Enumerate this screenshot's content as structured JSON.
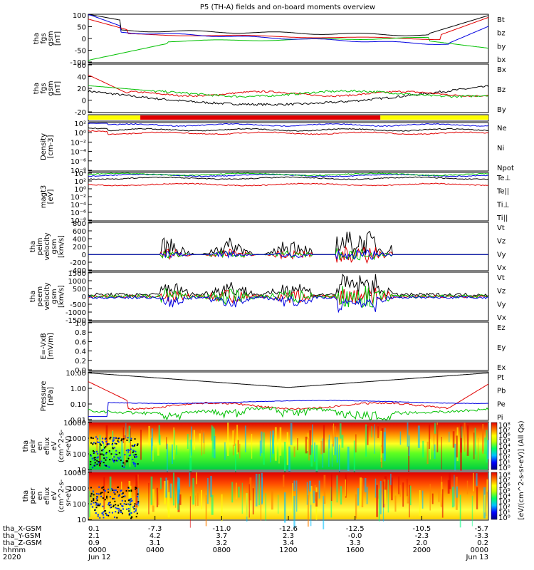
{
  "title": "P5 (TH-A) fields and on-board moments overview",
  "colors": {
    "black": "#000000",
    "red": "#e00000",
    "green": "#00c000",
    "blue": "#0000e0",
    "yellow": "#ffff00"
  },
  "chart_data": [
    {
      "type": "line",
      "panel": "fgs-gsm",
      "ylabel": [
        "tha",
        "fgs",
        "gsm",
        "[nT]"
      ],
      "ylim": [
        -100,
        100
      ],
      "yticks": [
        "100",
        "50",
        "0",
        "-50",
        "-100"
      ],
      "series": [
        {
          "name": "Bt",
          "color": "black"
        },
        {
          "name": "bz",
          "color": "red"
        },
        {
          "name": "by",
          "color": "green"
        },
        {
          "name": "bx",
          "color": "blue"
        }
      ]
    },
    {
      "type": "line",
      "panel": "fgs-gsm-2",
      "ylabel": [
        "tha",
        "fgs",
        "gsm",
        "[nT]"
      ],
      "ylim": [
        -30,
        60
      ],
      "yticks": [
        "60",
        "40",
        "20",
        "0",
        "-20"
      ],
      "series": [
        {
          "name": "Bx",
          "color": "black"
        },
        {
          "name": "Bz",
          "color": "red"
        },
        {
          "name": "By",
          "color": "green"
        }
      ]
    },
    {
      "type": "bar",
      "panel": "mode-bar",
      "note": "yellow / red mode indicator"
    },
    {
      "type": "line",
      "panel": "density",
      "ylabel": [
        "Density",
        "[cm-3]"
      ],
      "yticks": [
        "10²",
        "10⁰",
        "10⁻²",
        "10⁻⁴",
        "10⁻⁶",
        "10⁻⁸"
      ],
      "series": [
        {
          "name": "Ne",
          "color": "red"
        },
        {
          "name": "Ni",
          "color": "black"
        },
        {
          "name": "Npot",
          "color": "blue"
        }
      ]
    },
    {
      "type": "line",
      "panel": "temperature",
      "ylabel": [
        "magt3",
        "[eV]"
      ],
      "yticks": [
        "10⁴",
        "10²",
        "10⁰",
        "10⁻²",
        "10⁻⁴",
        "10⁻⁶",
        "10⁻⁸"
      ],
      "series": [
        {
          "name": "Te⊥",
          "color": "red"
        },
        {
          "name": "Te||",
          "color": "black"
        },
        {
          "name": "Ti⊥",
          "color": "blue"
        },
        {
          "name": "Ti||",
          "color": "green"
        }
      ]
    },
    {
      "type": "line",
      "panel": "peim-velocity",
      "ylabel": [
        "tha",
        "peim",
        "velocity",
        "gsm",
        "[km/s]"
      ],
      "ylim": [
        -400,
        800
      ],
      "yticks": [
        "800",
        "600",
        "400",
        "200",
        "0",
        "-200",
        "-400"
      ],
      "series": [
        {
          "name": "Vt",
          "color": "black"
        },
        {
          "name": "Vz",
          "color": "red"
        },
        {
          "name": "Vy",
          "color": "green"
        },
        {
          "name": "Vx",
          "color": "blue"
        }
      ]
    },
    {
      "type": "line",
      "panel": "peem-velocity",
      "ylabel": [
        "tha",
        "peem",
        "velocity",
        "gsm",
        "[km/s]"
      ],
      "ylim": [
        -1500,
        1500
      ],
      "yticks": [
        "1500",
        "1000",
        "500",
        "0",
        "-500",
        "-1000",
        "-1500"
      ],
      "series": [
        {
          "name": "Vt",
          "color": "black"
        },
        {
          "name": "Vz",
          "color": "red"
        },
        {
          "name": "Vy",
          "color": "green"
        },
        {
          "name": "Vx",
          "color": "blue"
        }
      ]
    },
    {
      "type": "line",
      "panel": "efield",
      "ylabel": [
        "E=-VxB",
        "[mV/m]"
      ],
      "ylim": [
        0,
        1
      ],
      "yticks": [
        "1.0",
        "0.8",
        "0.6",
        "0.4",
        "0.2",
        "0.0"
      ],
      "series": [
        {
          "name": "Ez",
          "color": "red"
        },
        {
          "name": "Ey",
          "color": "green"
        },
        {
          "name": "Ex",
          "color": "blue"
        }
      ]
    },
    {
      "type": "line",
      "panel": "pressure",
      "ylabel": [
        "Pressure",
        "[nPa]"
      ],
      "yticks": [
        "10.00",
        "1.00",
        "0.10",
        "0.01"
      ],
      "series": [
        {
          "name": "Pt",
          "color": "black"
        },
        {
          "name": "Pb",
          "color": "red"
        },
        {
          "name": "Pe",
          "color": "green"
        },
        {
          "name": "Pi",
          "color": "blue"
        }
      ]
    },
    {
      "type": "heatmap",
      "panel": "peir-eflux",
      "ylabel": [
        "tha",
        "peir",
        "en",
        "eflux",
        "eV",
        "(cm^2-s-",
        "sr-eV)"
      ],
      "yticks": [
        "10000",
        "1000",
        "100",
        "10"
      ],
      "colorbar": {
        "ticks": [
          "10⁸",
          "10⁷",
          "10⁶",
          "10⁵",
          "10⁴",
          "10³",
          "10²",
          "10¹",
          "10⁰"
        ]
      }
    },
    {
      "type": "heatmap",
      "panel": "peer-eflux",
      "ylabel": [
        "tha",
        "peer",
        "en",
        "eflux",
        "eV",
        "(cm^2-s-",
        "sr-eV)"
      ],
      "yticks": [
        "10000",
        "1000",
        "100",
        "10"
      ],
      "colorbar": {
        "ticks": [
          "10⁸",
          "10⁷",
          "10⁶",
          "10⁵",
          "10⁴",
          "10³",
          "10²",
          "10¹",
          "10⁰"
        ]
      },
      "colorbar_label": "[eV/(cm^2-s-sr-eV)] (All Qs)"
    }
  ],
  "xaxis": {
    "rows": [
      {
        "label": "tha_X-GSM",
        "values": [
          "0.1",
          "-7.3",
          "-11.0",
          "-12.6",
          "-12.5",
          "-10.5",
          "-5.7"
        ]
      },
      {
        "label": "tha_Y-GSM",
        "values": [
          "2.1",
          "4.2",
          "3.7",
          "2.3",
          "-0.0",
          "-2.3",
          "-3.3"
        ]
      },
      {
        "label": "tha_Z-GSM",
        "values": [
          "0.9",
          "3.1",
          "3.2",
          "3.4",
          "3.3",
          "2.0",
          "0.2"
        ]
      },
      {
        "label": "hhmm",
        "values": [
          "0000",
          "0400",
          "0800",
          "1200",
          "1600",
          "2000",
          "0000"
        ]
      },
      {
        "label": "2020",
        "values": [
          "Jun 12",
          "",
          "",
          "",
          "",
          "",
          "Jun 13"
        ]
      }
    ]
  }
}
